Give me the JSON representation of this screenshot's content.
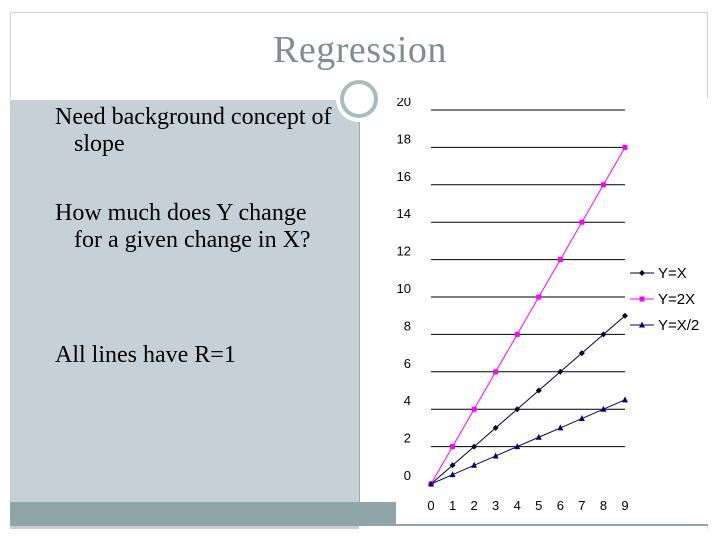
{
  "slide": {
    "title": "Regression",
    "bullets": [
      "Need background concept of slope",
      "How much does Y change for a given change in X?",
      "All lines have R=1"
    ]
  },
  "colors": {
    "series_y_eq_x": "#000033",
    "series_y_eq_2x": "#ff00ff",
    "series_y_eq_x_half": "#000080",
    "frame": "#c9d6d6",
    "panel": "#c5d1d6",
    "bottom_bar": "#8ea6a8"
  },
  "chart_data": {
    "type": "line",
    "title": "",
    "xlabel": "",
    "ylabel": "",
    "x": [
      0,
      1,
      2,
      3,
      4,
      5,
      6,
      7,
      8,
      9
    ],
    "xlim": [
      0,
      9
    ],
    "ylim": [
      0,
      20
    ],
    "x_ticks": [
      "0",
      "1",
      "2",
      "3",
      "4",
      "5",
      "6",
      "7",
      "8",
      "9"
    ],
    "y_ticks": [
      "0",
      "2",
      "4",
      "6",
      "8",
      "10",
      "12",
      "14",
      "16",
      "18",
      "20"
    ],
    "grid": "horizontal",
    "legend_position": "right",
    "series": [
      {
        "name": "Y=X",
        "marker": "diamond",
        "color": "#000033",
        "values": [
          0,
          1,
          2,
          3,
          4,
          5,
          6,
          7,
          8,
          9
        ]
      },
      {
        "name": "Y=2X",
        "marker": "square",
        "color": "#ff00ff",
        "values": [
          0,
          2,
          4,
          6,
          8,
          10,
          12,
          14,
          16,
          18
        ]
      },
      {
        "name": "Y=X/2",
        "marker": "triangle",
        "color": "#000080",
        "values": [
          0,
          0.5,
          1,
          1.5,
          2,
          2.5,
          3,
          3.5,
          4,
          4.5
        ]
      }
    ]
  }
}
